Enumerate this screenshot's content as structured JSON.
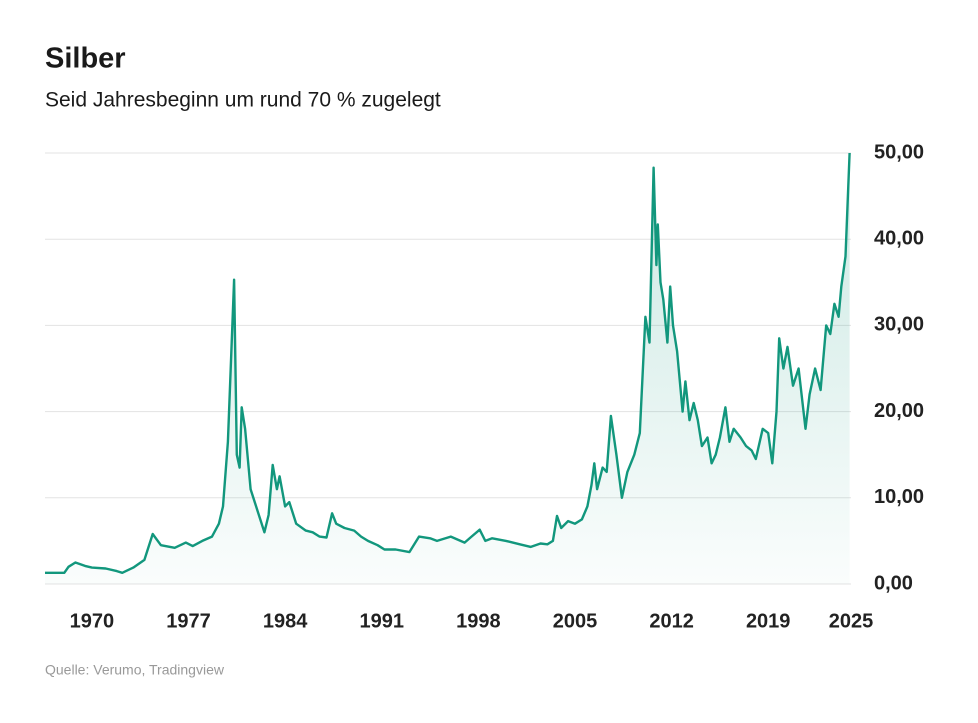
{
  "chart_data": {
    "type": "line",
    "title": "Silber",
    "subtitle": "Seid Jahresbeginn um rund 70 % zugelegt",
    "source": "Quelle: Verumo, Tradingview",
    "x": [
      1966.6,
      1968.0,
      1968.3,
      1968.8,
      1969.5,
      1970.0,
      1971.0,
      1971.8,
      1972.2,
      1973.0,
      1973.8,
      1974.4,
      1975.0,
      1976.0,
      1976.8,
      1977.3,
      1978.0,
      1978.7,
      1979.2,
      1979.5,
      1979.85,
      1980.3,
      1980.5,
      1980.7,
      1980.85,
      1981.1,
      1981.5,
      1982.0,
      1982.5,
      1982.8,
      1983.1,
      1983.4,
      1983.6,
      1984.0,
      1984.3,
      1984.8,
      1985.5,
      1986.0,
      1986.5,
      1987.0,
      1987.4,
      1987.7,
      1988.3,
      1989.0,
      1989.5,
      1990.0,
      1990.7,
      1991.2,
      1992.0,
      1993.0,
      1993.7,
      1994.5,
      1995.0,
      1996.0,
      1997.0,
      1997.5,
      1998.1,
      1998.5,
      1999.0,
      2000.0,
      2001.0,
      2001.8,
      2002.5,
      2003.0,
      2003.4,
      2003.7,
      2004.0,
      2004.5,
      2005.0,
      2005.5,
      2005.9,
      2006.2,
      2006.4,
      2006.6,
      2007.0,
      2007.3,
      2007.6,
      2008.0,
      2008.4,
      2008.8,
      2009.3,
      2009.7,
      2010.1,
      2010.4,
      2010.7,
      2010.9,
      2011.0,
      2011.2,
      2011.4,
      2011.7,
      2011.9,
      2012.1,
      2012.4,
      2012.8,
      2013.0,
      2013.3,
      2013.6,
      2013.9,
      2014.2,
      2014.6,
      2014.9,
      2015.2,
      2015.5,
      2015.9,
      2016.2,
      2016.5,
      2017.0,
      2017.4,
      2017.8,
      2018.1,
      2018.6,
      2019.0,
      2019.3,
      2019.6,
      2019.8,
      2020.1,
      2020.4,
      2020.8,
      2021.2,
      2021.7,
      2022.0,
      2022.4,
      2022.8,
      2023.2,
      2023.5,
      2023.8,
      2024.1,
      2024.3,
      2024.6,
      2024.9
    ],
    "series": [
      {
        "color": "#12977d",
        "values": [
          1.3,
          1.3,
          2.0,
          2.5,
          2.1,
          1.9,
          1.8,
          1.5,
          1.3,
          1.9,
          2.8,
          5.8,
          4.5,
          4.2,
          4.8,
          4.4,
          5.0,
          5.5,
          7.0,
          9.0,
          16.5,
          35.3,
          15.0,
          13.5,
          20.5,
          18.0,
          11.0,
          8.5,
          6.0,
          8.0,
          13.8,
          11.0,
          12.5,
          9.0,
          9.5,
          7.0,
          6.2,
          6.0,
          5.5,
          5.4,
          8.2,
          7.0,
          6.5,
          6.2,
          5.5,
          5.0,
          4.5,
          4.0,
          4.0,
          3.7,
          5.5,
          5.3,
          5.0,
          5.5,
          4.8,
          5.5,
          6.3,
          5.0,
          5.3,
          5.0,
          4.6,
          4.3,
          4.7,
          4.6,
          5.0,
          7.9,
          6.5,
          7.3,
          7.0,
          7.5,
          9.0,
          11.5,
          14.0,
          11.0,
          13.5,
          13.0,
          19.5,
          15.0,
          10.0,
          13.0,
          15.0,
          17.5,
          31.0,
          28.0,
          48.3,
          37.0,
          41.7,
          35.0,
          33.0,
          28.0,
          34.5,
          30.0,
          27.0,
          20.0,
          23.5,
          19.0,
          21.0,
          19.0,
          16.0,
          17.0,
          14.0,
          15.0,
          17.0,
          20.5,
          16.5,
          18.0,
          17.0,
          16.0,
          15.5,
          14.5,
          18.0,
          17.5,
          14.0,
          20.0,
          28.5,
          25.0,
          27.5,
          23.0,
          25.0,
          18.0,
          22.0,
          25.0,
          22.5,
          30.0,
          29.0,
          32.5,
          31.0,
          34.5,
          38.0,
          50.0
        ]
      }
    ],
    "xlim": [
      1966.6,
      2025.0
    ],
    "xticks": [
      1970,
      1977,
      1984,
      1991,
      1998,
      2005,
      2012,
      2019,
      2025
    ],
    "ylim": [
      0,
      50
    ],
    "yticks": [
      {
        "value": 0,
        "label": "0,00"
      },
      {
        "value": 10,
        "label": "10,00"
      },
      {
        "value": 20,
        "label": "20,00"
      },
      {
        "value": 30,
        "label": "30,00"
      },
      {
        "value": 40,
        "label": "40,00"
      },
      {
        "value": 50,
        "label": "50,00"
      }
    ],
    "grid": true
  }
}
